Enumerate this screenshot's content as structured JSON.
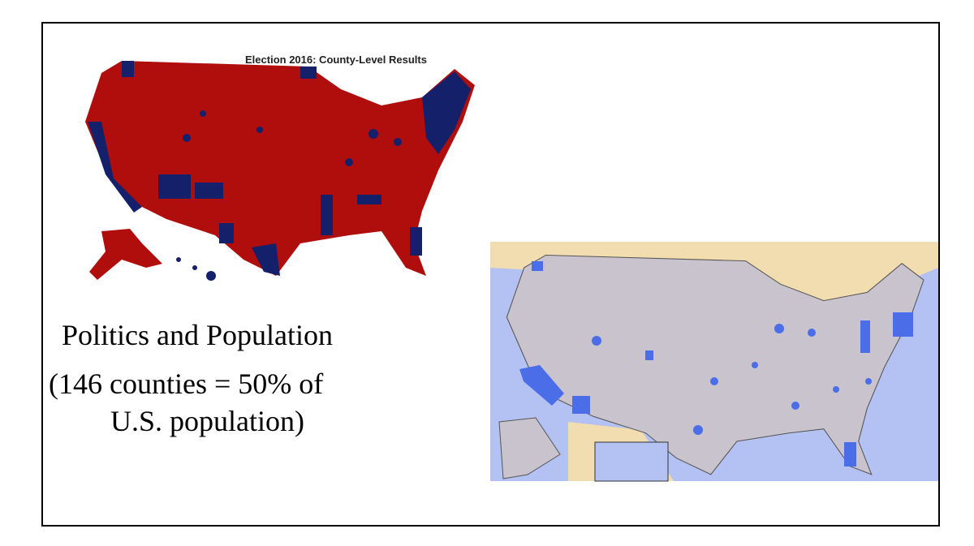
{
  "slide": {
    "map_title": "Election 2016: County-Level Results",
    "heading": "Politics and Population",
    "caption_lines": [
      "(146 counties = 50% of",
      "U.S. population)"
    ]
  }
}
